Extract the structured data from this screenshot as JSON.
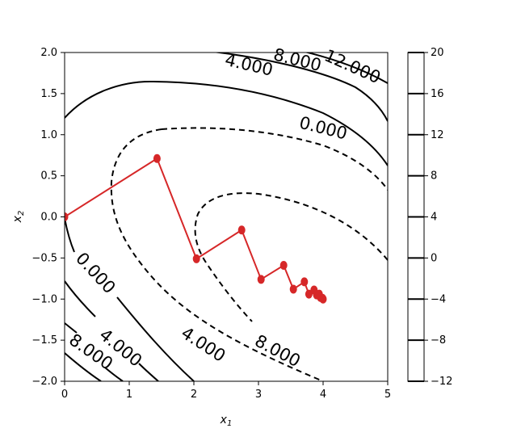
{
  "chart_data": {
    "type": "contour",
    "title": "",
    "xlabel": "x",
    "xlabel_sub": "1",
    "ylabel": "x",
    "ylabel_sub": "2",
    "xlim": [
      0,
      5
    ],
    "ylim": [
      -2,
      2
    ],
    "x_ticks": [
      0,
      1,
      2,
      3,
      4,
      5
    ],
    "x_tick_labels": [
      "0",
      "1",
      "2",
      "3",
      "4",
      "5"
    ],
    "y_ticks": [
      2.0,
      1.5,
      1.0,
      0.5,
      0.0,
      -0.5,
      -1.0,
      -1.5,
      -2.0
    ],
    "y_tick_labels": [
      "2.0",
      "1.5",
      "1.0",
      "0.5",
      "0.0",
      "−0.5",
      "−1.0",
      "−1.5",
      "−2.0"
    ],
    "grid": false,
    "contour_labels": [
      {
        "text": "4.000",
        "x": 2.85,
        "y": 1.84,
        "angle": 13
      },
      {
        "text": "8.000",
        "x": 3.6,
        "y": 1.9,
        "angle": 14
      },
      {
        "text": "12.000",
        "x": 4.45,
        "y": 1.82,
        "angle": 24
      },
      {
        "text": "0.000",
        "x": 4.0,
        "y": 1.07,
        "angle": 14
      },
      {
        "text": "0.000",
        "x": 0.47,
        "y": -0.69,
        "angle": 47
      },
      {
        "text": "4.000",
        "x": 0.86,
        "y": -1.6,
        "angle": 39
      },
      {
        "text": "8.000",
        "x": 0.4,
        "y": -1.65,
        "angle": 35
      },
      {
        "text": "4.000",
        "x": 2.14,
        "y": -1.56,
        "angle": 33
      },
      {
        "text": "8.000",
        "x": 3.29,
        "y": -1.64,
        "angle": 28
      }
    ],
    "path": {
      "color": "#d62728",
      "points": [
        [
          0.0,
          0.0
        ],
        [
          1.43,
          0.71
        ],
        [
          2.04,
          -0.51
        ],
        [
          2.74,
          -0.16
        ],
        [
          3.04,
          -0.76
        ],
        [
          3.39,
          -0.59
        ],
        [
          3.54,
          -0.88
        ],
        [
          3.71,
          -0.79
        ],
        [
          3.78,
          -0.94
        ],
        [
          3.86,
          -0.89
        ],
        [
          3.9,
          -0.95
        ],
        [
          3.94,
          -0.94
        ],
        [
          3.96,
          -0.98
        ],
        [
          3.99,
          -0.99
        ],
        [
          4.0,
          -1.0
        ]
      ]
    },
    "colorbar": {
      "ticks": [
        20,
        16,
        12,
        8,
        4,
        0,
        -4,
        -8,
        -12
      ],
      "tick_labels": [
        "20",
        "16",
        "12",
        "8",
        "4",
        "0",
        "−4",
        "−8",
        "−12"
      ],
      "range": [
        -12,
        20
      ]
    }
  }
}
